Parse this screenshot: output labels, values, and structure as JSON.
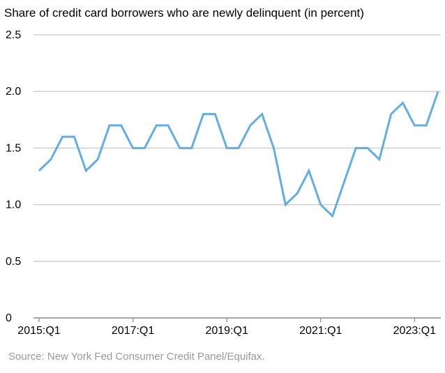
{
  "chart_data": {
    "type": "line",
    "title": "Share of credit card borrowers who are newly delinquent (in percent)",
    "source": "Source: New York Fed Consumer Credit Panel/Equifax.",
    "x": [
      "2015:Q1",
      "2015:Q2",
      "2015:Q3",
      "2015:Q4",
      "2016:Q1",
      "2016:Q2",
      "2016:Q3",
      "2016:Q4",
      "2017:Q1",
      "2017:Q2",
      "2017:Q3",
      "2017:Q4",
      "2018:Q1",
      "2018:Q2",
      "2018:Q3",
      "2018:Q4",
      "2019:Q1",
      "2019:Q2",
      "2019:Q3",
      "2019:Q4",
      "2020:Q1",
      "2020:Q2",
      "2020:Q3",
      "2020:Q4",
      "2021:Q1",
      "2021:Q2",
      "2021:Q3",
      "2021:Q4",
      "2022:Q1",
      "2022:Q2",
      "2022:Q3",
      "2022:Q4",
      "2023:Q1",
      "2023:Q2",
      "2023:Q3"
    ],
    "series": [
      {
        "values": [
          1.3,
          1.4,
          1.6,
          1.6,
          1.3,
          1.4,
          1.7,
          1.7,
          1.5,
          1.5,
          1.7,
          1.7,
          1.5,
          1.5,
          1.8,
          1.8,
          1.5,
          1.5,
          1.7,
          1.8,
          1.5,
          1.0,
          1.1,
          1.3,
          1.0,
          0.9,
          1.2,
          1.5,
          1.5,
          1.4,
          1.8,
          1.9,
          1.7,
          1.7,
          2.0
        ]
      }
    ],
    "x_tick_labels": [
      "2015:Q1",
      "2017:Q1",
      "2019:Q1",
      "2021:Q1",
      "2023:Q1"
    ],
    "y_tick_labels": [
      "0",
      "0.5",
      "1.0",
      "1.5",
      "2.0",
      "2.5"
    ],
    "ylim": [
      0,
      2.5
    ],
    "grid": true,
    "colors": {
      "line": "#64ade0",
      "grid": "#c9c9c9",
      "axis": "#8c8c8c",
      "source_text": "#9a9a9a"
    }
  }
}
